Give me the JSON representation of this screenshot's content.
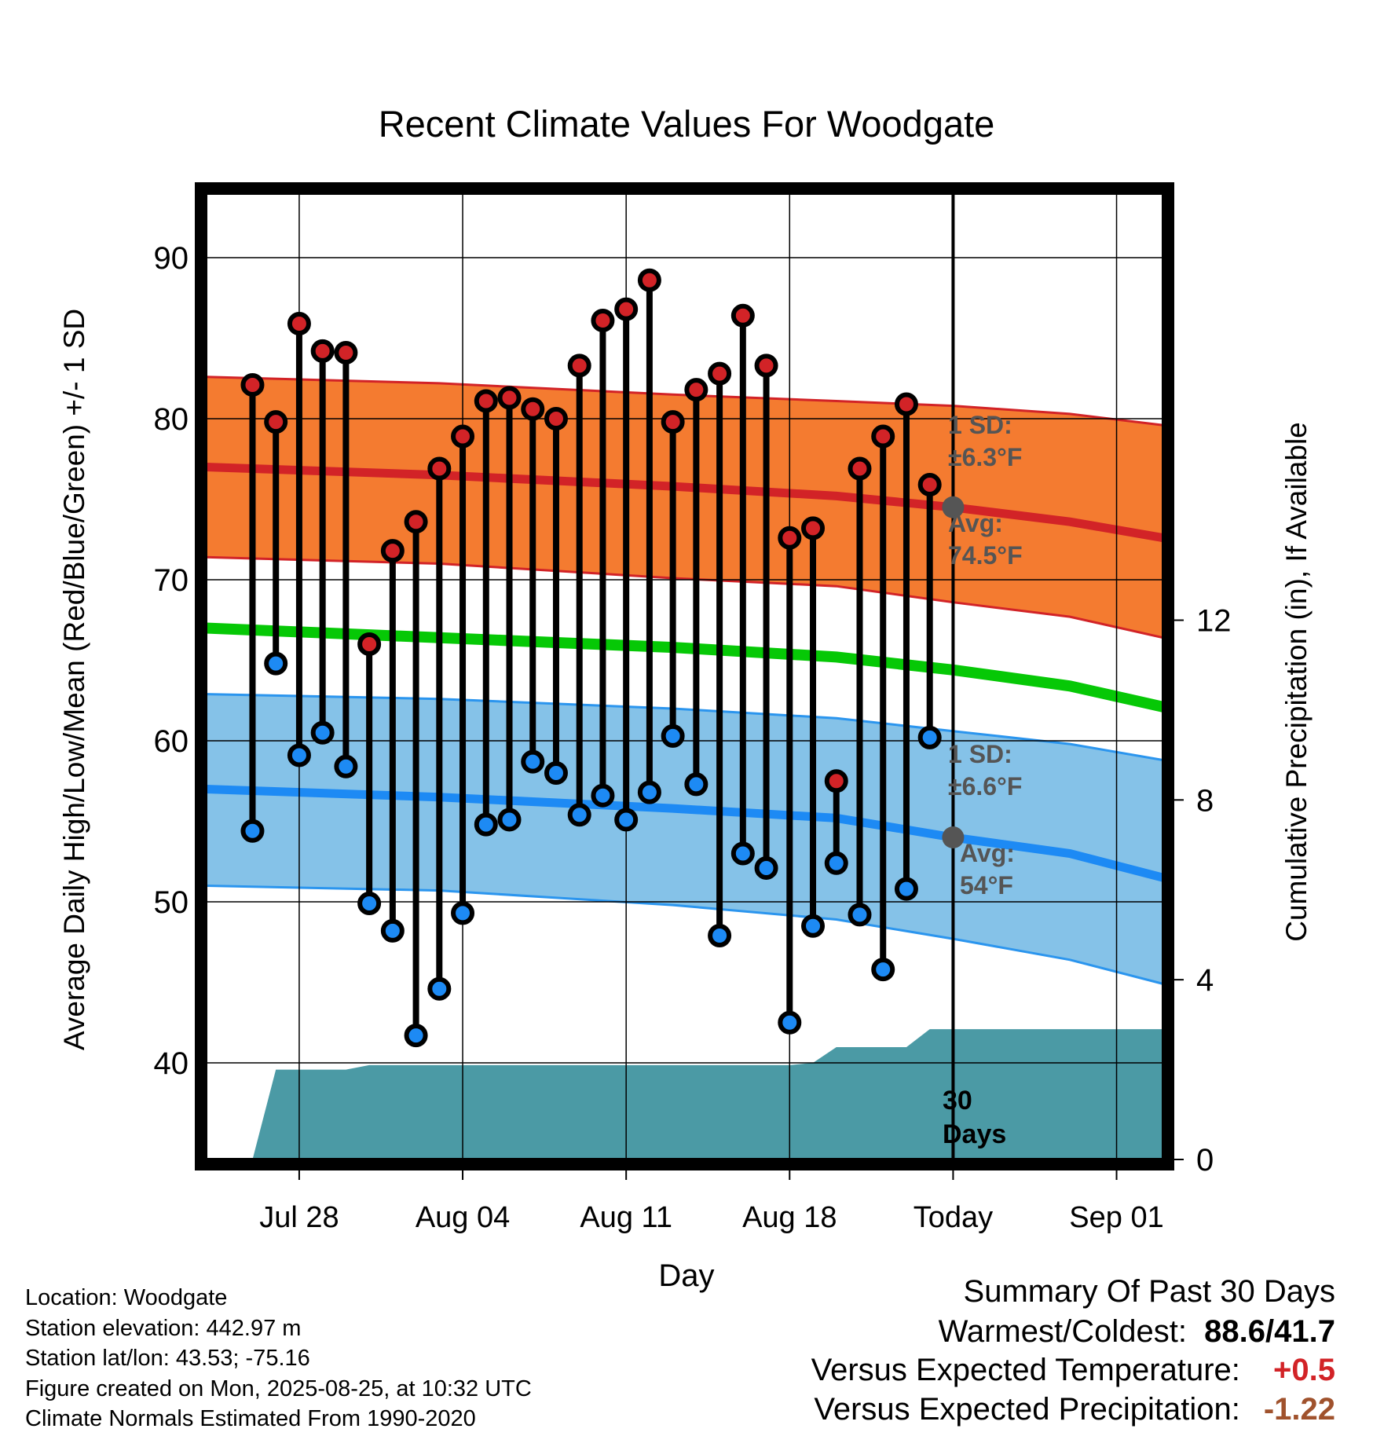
{
  "chart_data": {
    "type": "line",
    "title": "Recent Climate Values For Woodgate",
    "xlabel": "Day",
    "ylabel": "Average Daily High/Low/Mean (Red/Blue/Green) +/- 1 SD",
    "y2label": "Cumulative Precipitation (in), If Available",
    "ylim": [
      34,
      94
    ],
    "y2lim": [
      0,
      21.5
    ],
    "yticks": [
      40,
      50,
      60,
      70,
      80,
      90
    ],
    "y2ticks": [
      0,
      4,
      8,
      12
    ],
    "xrange_dates": [
      "2025-07-24",
      "2025-09-03"
    ],
    "xticks": [
      {
        "date": "2025-07-28",
        "label": "Jul 28"
      },
      {
        "date": "2025-08-04",
        "label": "Aug 04"
      },
      {
        "date": "2025-08-11",
        "label": "Aug 11"
      },
      {
        "date": "2025-08-18",
        "label": "Aug 18"
      },
      {
        "date": "2025-08-25",
        "label": "Today"
      },
      {
        "date": "2025-09-01",
        "label": "Sep 01"
      }
    ],
    "today": "2025-08-25",
    "daily": {
      "dates": [
        "2025-07-26",
        "2025-07-27",
        "2025-07-28",
        "2025-07-29",
        "2025-07-30",
        "2025-07-31",
        "2025-08-01",
        "2025-08-02",
        "2025-08-03",
        "2025-08-04",
        "2025-08-05",
        "2025-08-06",
        "2025-08-07",
        "2025-08-08",
        "2025-08-09",
        "2025-08-10",
        "2025-08-11",
        "2025-08-12",
        "2025-08-13",
        "2025-08-14",
        "2025-08-15",
        "2025-08-16",
        "2025-08-17",
        "2025-08-18",
        "2025-08-19",
        "2025-08-20",
        "2025-08-21",
        "2025-08-22",
        "2025-08-23",
        "2025-08-24"
      ],
      "high": [
        82.1,
        79.8,
        85.9,
        84.2,
        84.1,
        66.0,
        71.8,
        73.6,
        76.9,
        78.9,
        81.1,
        81.3,
        80.6,
        80.0,
        83.3,
        86.1,
        86.8,
        88.6,
        79.8,
        81.8,
        82.8,
        86.4,
        83.3,
        72.6,
        73.2,
        57.5,
        76.9,
        78.9,
        80.9,
        75.9
      ],
      "low": [
        54.4,
        64.8,
        59.1,
        60.5,
        58.4,
        49.9,
        48.2,
        41.7,
        44.6,
        49.3,
        54.8,
        55.1,
        58.7,
        58.0,
        55.4,
        56.6,
        55.1,
        56.8,
        60.3,
        57.3,
        47.9,
        53.0,
        52.1,
        42.5,
        48.5,
        52.4,
        49.2,
        45.8,
        50.8,
        60.2
      ]
    },
    "normals": {
      "dates": [
        "2025-07-24",
        "2025-08-03",
        "2025-08-13",
        "2025-08-20",
        "2025-08-25",
        "2025-08-30",
        "2025-09-03"
      ],
      "high_avg": [
        77.0,
        76.5,
        75.8,
        75.2,
        74.5,
        73.6,
        72.6
      ],
      "high_sd_upper": [
        82.6,
        82.2,
        81.5,
        81.1,
        80.8,
        80.3,
        79.6
      ],
      "high_sd_lower": [
        71.4,
        71.0,
        70.1,
        69.6,
        68.6,
        67.7,
        66.4
      ],
      "mean_avg": [
        67.0,
        66.4,
        65.8,
        65.2,
        64.4,
        63.4,
        62.1
      ],
      "low_avg": [
        57.0,
        56.5,
        55.8,
        55.2,
        54.0,
        53.0,
        51.5
      ],
      "low_sd_upper": [
        62.9,
        62.6,
        62.0,
        61.4,
        60.6,
        59.8,
        58.8
      ],
      "low_sd_lower": [
        51.0,
        50.7,
        49.8,
        48.9,
        47.7,
        46.4,
        44.9
      ]
    },
    "precip_cumulative": {
      "dates": [
        "2025-07-24",
        "2025-07-25",
        "2025-07-26",
        "2025-07-27",
        "2025-07-28",
        "2025-07-29",
        "2025-07-30",
        "2025-07-31",
        "2025-08-01",
        "2025-08-18",
        "2025-08-19",
        "2025-08-20",
        "2025-08-21",
        "2025-08-22",
        "2025-08-23",
        "2025-08-24",
        "2025-08-25",
        "2025-09-03"
      ],
      "values": [
        0,
        0,
        0,
        2.0,
        2.0,
        2.0,
        2.0,
        2.1,
        2.1,
        2.1,
        2.15,
        2.5,
        2.5,
        2.5,
        2.5,
        2.9,
        2.9,
        2.9
      ]
    },
    "annotations": {
      "high_sd_label": "1 SD:",
      "high_sd_value": "±6.3°F",
      "high_avg_label": "Avg:",
      "high_avg_value": "74.5°F",
      "low_sd_label": "1 SD:",
      "low_sd_value": "±6.6°F",
      "low_avg_label": "Avg:",
      "low_avg_value": "54°F",
      "window_label_1": "30",
      "window_label_2": "Days"
    },
    "colors": {
      "high_band": "#f47b30",
      "high_line": "#d22327",
      "low_band": "#85c2e8",
      "low_line": "#1d8af4",
      "low_band_edge": "#2b95ee",
      "mean_line": "#06c806",
      "precip": "#4b9aa5",
      "high_marker": "#d22327",
      "low_marker": "#1d8af4",
      "avg_marker": "#555555",
      "annotation_text": "#555555"
    }
  },
  "meta": {
    "location": "Location: Woodgate",
    "elevation": "Station elevation: 442.97 m",
    "latlon": "Station lat/lon: 43.53; -75.16",
    "created": "Figure created on Mon, 2025-08-25, at 10:32 UTC",
    "normals": "Climate Normals Estimated From 1990-2020"
  },
  "summary": {
    "title": "Summary Of Past 30 Days",
    "warm_cold_label": "Warmest/Coldest:",
    "warm_cold_value": "88.6/41.7",
    "temp_label": "Versus Expected Temperature:",
    "temp_value": "+0.5",
    "precip_label": "Versus Expected Precipitation:",
    "precip_value": "-1.22",
    "temp_color": "#d22327",
    "precip_color": "#a0522d"
  }
}
